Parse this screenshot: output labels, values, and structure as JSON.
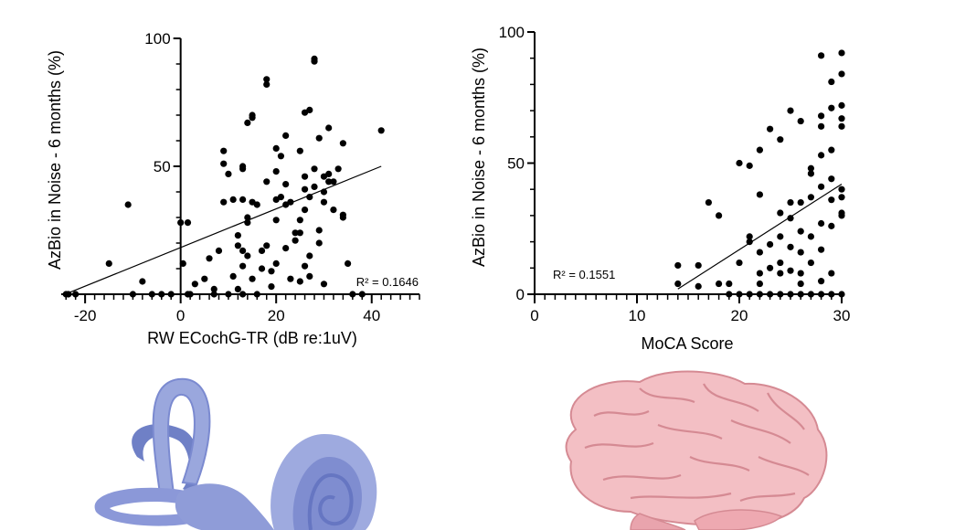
{
  "chart_data": [
    {
      "type": "scatter",
      "xlabel": "RW ECochG-TR (dB re:1uV)",
      "ylabel": "AzBio in Noise - 6 months (%)",
      "xlim": [
        -25,
        50
      ],
      "ylim": [
        0,
        100
      ],
      "xticks": [
        -20,
        0,
        20,
        40
      ],
      "yticks": [
        50,
        100
      ],
      "r2_label": "R² = 0.1646",
      "fit_line": [
        [
          -23.5,
          0.5
        ],
        [
          42,
          50
        ]
      ],
      "points": [
        [
          -24,
          0
        ],
        [
          -23.5,
          0
        ],
        [
          -22,
          0
        ],
        [
          -15,
          12
        ],
        [
          -11,
          35
        ],
        [
          -10,
          0
        ],
        [
          -8,
          5
        ],
        [
          -6,
          0
        ],
        [
          -4,
          0
        ],
        [
          -2,
          0
        ],
        [
          0,
          28
        ],
        [
          0.5,
          12
        ],
        [
          1.5,
          28
        ],
        [
          1.5,
          0
        ],
        [
          2,
          0
        ],
        [
          3,
          4
        ],
        [
          5,
          6
        ],
        [
          6,
          14
        ],
        [
          7,
          2
        ],
        [
          7,
          0
        ],
        [
          8,
          17
        ],
        [
          9,
          51
        ],
        [
          9,
          56
        ],
        [
          9,
          36
        ],
        [
          10,
          47
        ],
        [
          10,
          0
        ],
        [
          11,
          37
        ],
        [
          11,
          7
        ],
        [
          12,
          19
        ],
        [
          12,
          23
        ],
        [
          12,
          2
        ],
        [
          13,
          49
        ],
        [
          13,
          50
        ],
        [
          13,
          37
        ],
        [
          13,
          17
        ],
        [
          13,
          11
        ],
        [
          13,
          0
        ],
        [
          14,
          67
        ],
        [
          14,
          30
        ],
        [
          14,
          15
        ],
        [
          14,
          28
        ],
        [
          15,
          70
        ],
        [
          15,
          69
        ],
        [
          15,
          36
        ],
        [
          15,
          6
        ],
        [
          16,
          35
        ],
        [
          16,
          0
        ],
        [
          17,
          17
        ],
        [
          17,
          10
        ],
        [
          18,
          82
        ],
        [
          18,
          84
        ],
        [
          18,
          44
        ],
        [
          18,
          19
        ],
        [
          19,
          9
        ],
        [
          19,
          3
        ],
        [
          20,
          57
        ],
        [
          20,
          48
        ],
        [
          20,
          37
        ],
        [
          20,
          29
        ],
        [
          20,
          12
        ],
        [
          21,
          54
        ],
        [
          21,
          38
        ],
        [
          22,
          62
        ],
        [
          22,
          43
        ],
        [
          22,
          35
        ],
        [
          22,
          18
        ],
        [
          23,
          36
        ],
        [
          23,
          6
        ],
        [
          24,
          24
        ],
        [
          24,
          21
        ],
        [
          25,
          56
        ],
        [
          25,
          29
        ],
        [
          25,
          24
        ],
        [
          25,
          5
        ],
        [
          26,
          71
        ],
        [
          26,
          46
        ],
        [
          26,
          41
        ],
        [
          26,
          33
        ],
        [
          26,
          11
        ],
        [
          27,
          72
        ],
        [
          27,
          38
        ],
        [
          27,
          15
        ],
        [
          27,
          7
        ],
        [
          28,
          92
        ],
        [
          28,
          91
        ],
        [
          28,
          49
        ],
        [
          28,
          42
        ],
        [
          29,
          61
        ],
        [
          29,
          25
        ],
        [
          29,
          20
        ],
        [
          30,
          40
        ],
        [
          30,
          46
        ],
        [
          30,
          36
        ],
        [
          30,
          4
        ],
        [
          31,
          65
        ],
        [
          31,
          47
        ],
        [
          31,
          44
        ],
        [
          32,
          44
        ],
        [
          32,
          33
        ],
        [
          33,
          49
        ],
        [
          34,
          59
        ],
        [
          34,
          31
        ],
        [
          34,
          30
        ],
        [
          35,
          12
        ],
        [
          36,
          0
        ],
        [
          38,
          0
        ],
        [
          42,
          64
        ]
      ]
    },
    {
      "type": "scatter",
      "xlabel": "MoCA Score",
      "ylabel": "AzBio in Noise - 6 months (%)",
      "xlim": [
        0,
        30
      ],
      "ylim": [
        0,
        100
      ],
      "xticks": [
        0,
        10,
        20,
        30
      ],
      "yticks": [
        0,
        50,
        100
      ],
      "r2_label": "R² = 0.1551",
      "fit_line": [
        [
          14,
          2
        ],
        [
          30,
          42
        ]
      ],
      "points": [
        [
          14,
          11
        ],
        [
          14,
          4
        ],
        [
          16,
          11
        ],
        [
          16,
          3
        ],
        [
          17,
          35
        ],
        [
          18,
          30
        ],
        [
          18,
          4
        ],
        [
          19,
          4
        ],
        [
          19,
          0
        ],
        [
          20,
          50
        ],
        [
          20,
          12
        ],
        [
          20,
          0
        ],
        [
          21,
          49
        ],
        [
          21,
          20
        ],
        [
          21,
          22
        ],
        [
          21,
          0
        ],
        [
          22,
          55
        ],
        [
          22,
          38
        ],
        [
          22,
          16
        ],
        [
          22,
          8
        ],
        [
          22,
          4
        ],
        [
          22,
          0
        ],
        [
          23,
          63
        ],
        [
          23,
          19
        ],
        [
          23,
          10
        ],
        [
          23,
          0
        ],
        [
          24,
          59
        ],
        [
          24,
          31
        ],
        [
          24,
          22
        ],
        [
          24,
          12
        ],
        [
          24,
          8
        ],
        [
          24,
          0
        ],
        [
          25,
          70
        ],
        [
          25,
          35
        ],
        [
          25,
          29
        ],
        [
          25,
          18
        ],
        [
          25,
          9
        ],
        [
          25,
          0
        ],
        [
          26,
          66
        ],
        [
          26,
          35
        ],
        [
          26,
          24
        ],
        [
          26,
          16
        ],
        [
          26,
          8
        ],
        [
          26,
          4
        ],
        [
          26,
          0
        ],
        [
          27,
          48
        ],
        [
          27,
          46
        ],
        [
          27,
          37
        ],
        [
          27,
          22
        ],
        [
          27,
          12
        ],
        [
          27,
          0
        ],
        [
          28,
          91
        ],
        [
          28,
          68
        ],
        [
          28,
          64
        ],
        [
          28,
          53
        ],
        [
          28,
          41
        ],
        [
          28,
          27
        ],
        [
          28,
          17
        ],
        [
          28,
          5
        ],
        [
          28,
          0
        ],
        [
          29,
          81
        ],
        [
          29,
          71
        ],
        [
          29,
          55
        ],
        [
          29,
          44
        ],
        [
          29,
          36
        ],
        [
          29,
          26
        ],
        [
          29,
          8
        ],
        [
          29,
          0
        ],
        [
          30,
          92
        ],
        [
          30,
          84
        ],
        [
          30,
          72
        ],
        [
          30,
          67
        ],
        [
          30,
          64
        ],
        [
          30,
          40
        ],
        [
          30,
          37
        ],
        [
          30,
          31
        ],
        [
          30,
          30
        ],
        [
          30,
          0
        ]
      ]
    }
  ]
}
